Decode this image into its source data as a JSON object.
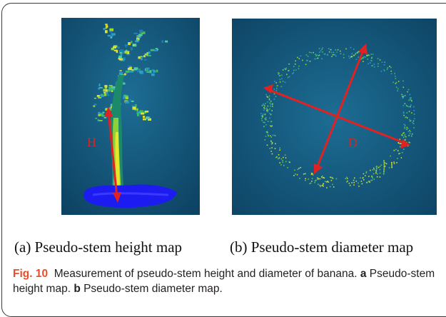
{
  "figure": {
    "panel_a": {
      "label": "H",
      "subcaption": "(a) Pseudo-stem height map",
      "arrow_color": "#e02222",
      "background": "#13557a"
    },
    "panel_b": {
      "label": "D",
      "subcaption": "(b) Pseudo-stem diameter map",
      "arrow_color": "#e02222",
      "background": "#13557a"
    },
    "caption": {
      "fig_label": "Fig. 10",
      "text": "Measurement of pseudo-stem height and diameter of banana.",
      "a_letter": "a",
      "a_text": "Pseudo-stem height map.",
      "b_letter": "b",
      "b_text": "Pseudo-stem diameter map."
    }
  }
}
